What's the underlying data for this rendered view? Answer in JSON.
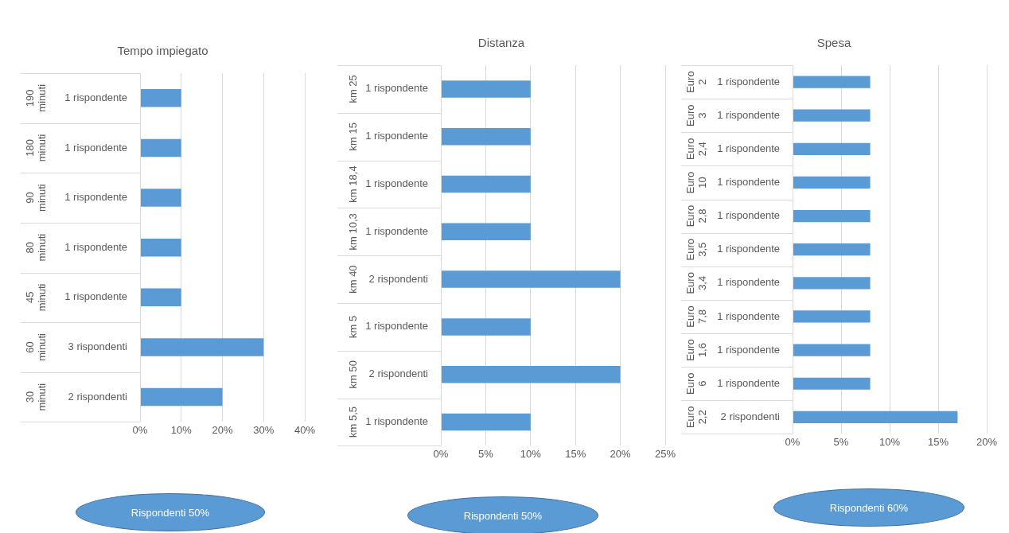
{
  "chart_data": [
    {
      "type": "bar",
      "orientation": "horizontal",
      "title": "Tempo impiegato",
      "categories": [
        "1 rispondente",
        "1 rispondente",
        "1 rispondente",
        "1 rispondente",
        "1 rispondente",
        "3 rispondenti",
        "2 rispondenti"
      ],
      "values": [
        10,
        10,
        10,
        10,
        10,
        30,
        20
      ],
      "color": "#5b9bd5",
      "xlim": [
        0,
        40
      ],
      "xticks": [
        {
          "value": 0,
          "label": "0%"
        },
        {
          "value": 10,
          "label": "10%"
        },
        {
          "value": 20,
          "label": "20%"
        },
        {
          "value": 30,
          "label": "30%"
        },
        {
          "value": 40,
          "label": "40%"
        }
      ],
      "grid": "x",
      "annotations": [
        "190 minuti",
        "180 minuti",
        "90 minuti",
        "80 minuti",
        "45 minuti",
        "60 minuti",
        "30 minuti",
        "Rispondenti 50%"
      ]
    },
    {
      "type": "bar",
      "orientation": "horizontal",
      "title": "Distanza",
      "categories": [
        "1 rispondente",
        "1 rispondente",
        "1 rispondente",
        "1 rispondente",
        "2 rispondenti",
        "1 rispondente",
        "2 rispondenti",
        "1 rispondente"
      ],
      "values": [
        10,
        10,
        10,
        10,
        20,
        10,
        20,
        10
      ],
      "color": "#5b9bd5",
      "xlim": [
        0,
        25
      ],
      "xticks": [
        {
          "value": 0,
          "label": "0%"
        },
        {
          "value": 5,
          "label": "5%"
        },
        {
          "value": 10,
          "label": "10%"
        },
        {
          "value": 15,
          "label": "15%"
        },
        {
          "value": 20,
          "label": "20%"
        },
        {
          "value": 25,
          "label": "25%"
        }
      ],
      "grid": "x",
      "annotations": [
        "km 25",
        "km 15",
        "km 18,4",
        "km 10,3",
        "km 40",
        "km 5",
        "km 50",
        "km 5,5",
        "Rispondenti 50%"
      ]
    },
    {
      "type": "bar",
      "orientation": "horizontal",
      "title": "Spesa",
      "categories": [
        "1 rispondente",
        "1 rispondente",
        "1 rispondente",
        "1 rispondente",
        "1 rispondente",
        "1 rispondente",
        "1 rispondente",
        "1 rispondente",
        "1 rispondente",
        "1 rispondente",
        "2 rispondenti"
      ],
      "values": [
        8,
        8,
        8,
        8,
        8,
        8,
        8,
        8,
        8,
        8,
        17
      ],
      "color": "#5b9bd5",
      "xlim": [
        0,
        20
      ],
      "xticks": [
        {
          "value": 0,
          "label": "0%"
        },
        {
          "value": 5,
          "label": "5%"
        },
        {
          "value": 10,
          "label": "10%"
        },
        {
          "value": 15,
          "label": "15%"
        },
        {
          "value": 20,
          "label": "20%"
        }
      ],
      "grid": "x",
      "annotations": [
        "Euro 2",
        "Euro 3",
        "Euro 2,4",
        "Euro 10",
        "Euro 2,8",
        "Euro 3,5",
        "Euro 3,4",
        "Euro 7,8",
        "Euro 1,6",
        "Euro 6",
        "Euro 2,2",
        "Rispondenti 60%"
      ]
    }
  ]
}
